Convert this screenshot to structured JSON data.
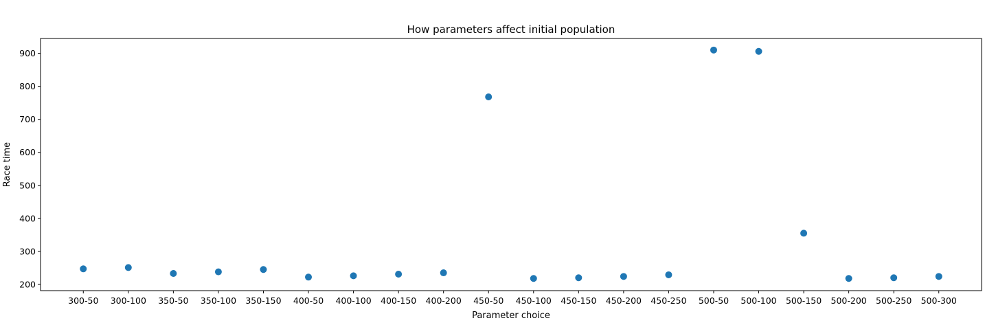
{
  "chart_data": {
    "type": "scatter",
    "title": "How parameters affect initial population",
    "xlabel": "Parameter choice",
    "ylabel": "Race time",
    "categories": [
      "300-50",
      "300-100",
      "350-50",
      "350-100",
      "350-150",
      "400-50",
      "400-100",
      "400-150",
      "400-200",
      "450-50",
      "450-100",
      "450-150",
      "450-200",
      "450-250",
      "500-50",
      "500-100",
      "500-150",
      "500-200",
      "500-250",
      "500-300"
    ],
    "series": [
      {
        "values": [
          247,
          251,
          233,
          238,
          245,
          222,
          226,
          231,
          235,
          768,
          218,
          220,
          224,
          229,
          910,
          906,
          355,
          218,
          220,
          224
        ],
        "color": "#1f77b4"
      }
    ],
    "ylim": [
      181,
      945
    ],
    "yticks": [
      200,
      300,
      400,
      500,
      600,
      700,
      800,
      900
    ],
    "grid": false,
    "legend": "none"
  }
}
